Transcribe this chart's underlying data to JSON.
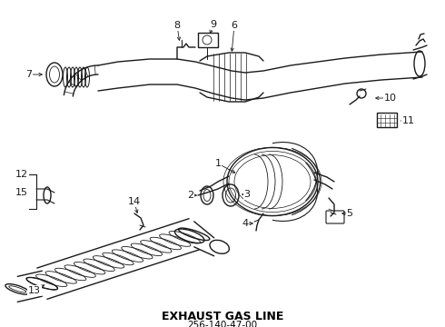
{
  "title": "EXHAUST GAS LINE",
  "part_number": "256-140-47-00",
  "bg_color": "#ffffff",
  "line_color": "#1a1a1a",
  "figsize": [
    4.9,
    3.6
  ],
  "dpi": 100
}
